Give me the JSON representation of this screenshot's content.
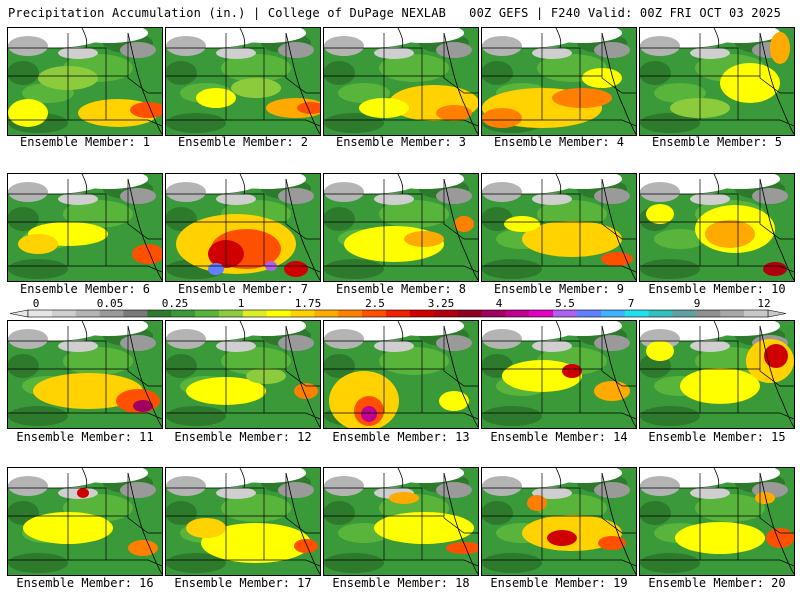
{
  "header": {
    "left": "Precipitation Accumulation (in.) | College of DuPage NEXLAB",
    "right": "00Z GEFS | F240 Valid: 00Z FRI OCT 03 2025"
  },
  "panels": [
    {
      "label": "Ensemble Member: 1"
    },
    {
      "label": "Ensemble Member: 2"
    },
    {
      "label": "Ensemble Member: 3"
    },
    {
      "label": "Ensemble Member: 4"
    },
    {
      "label": "Ensemble Member: 5"
    },
    {
      "label": "Ensemble Member: 6"
    },
    {
      "label": "Ensemble Member: 7"
    },
    {
      "label": "Ensemble Member: 8"
    },
    {
      "label": "Ensemble Member: 9"
    },
    {
      "label": "Ensemble Member: 10"
    },
    {
      "label": "Ensemble Member: 11"
    },
    {
      "label": "Ensemble Member: 12"
    },
    {
      "label": "Ensemble Member: 13"
    },
    {
      "label": "Ensemble Member: 14"
    },
    {
      "label": "Ensemble Member: 15"
    },
    {
      "label": "Ensemble Member: 16"
    },
    {
      "label": "Ensemble Member: 17"
    },
    {
      "label": "Ensemble Member: 18"
    },
    {
      "label": "Ensemble Member: 19"
    },
    {
      "label": "Ensemble Member: 20"
    }
  ],
  "colorbar": {
    "tick_labels": [
      "0",
      "0.05",
      "0.25",
      "1",
      "1.75",
      "2.5",
      "3.25",
      "4",
      "5.5",
      "7",
      "9",
      "12"
    ],
    "colors": [
      "#e6e6e6",
      "#cfcfcf",
      "#b4b4b4",
      "#9a9a9a",
      "#7a7a7a",
      "#2d7a2d",
      "#3a9a3a",
      "#59b43c",
      "#8ccc3c",
      "#dcee28",
      "#ffff00",
      "#ffd200",
      "#ffaa00",
      "#ff8000",
      "#ff5000",
      "#f02000",
      "#d00000",
      "#b00010",
      "#900020",
      "#a00060",
      "#c00090",
      "#e000c0",
      "#b060f0",
      "#6080ff",
      "#40b0ff",
      "#20e0f0",
      "#30c0c0",
      "#60a0a0",
      "#909090",
      "#a8a8a8",
      "#c8c8c8"
    ]
  }
}
